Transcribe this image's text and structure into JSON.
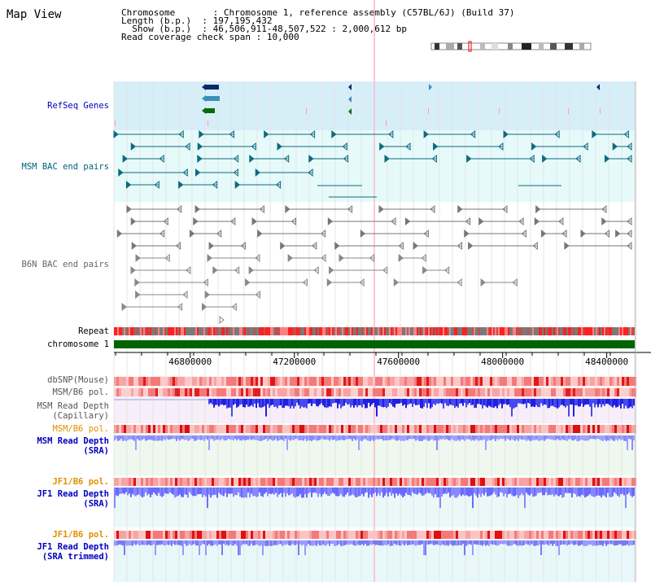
{
  "title": "Map View",
  "header": {
    "chromosome_label": "Chromosome",
    "chromosome_value": "Chromosome 1, reference assembly (C57BL/6J) (Build 37)",
    "length_label": "Length (b.p.)",
    "length_value": "197,195,432",
    "show_label": "Show (b.p.)",
    "show_value": "46,506,911-48,507,522 : 2,000,612 bp",
    "coverage_label": "Read coverage check span",
    "coverage_value": "10,000"
  },
  "tracks": {
    "refseq": "RefSeq Genes",
    "msm_bac": "MSM BAC end pairs",
    "b6n_bac": "B6N BAC end pairs",
    "repeat": "Repeat",
    "chromosome": "chromosome 1",
    "dbsnp": "dbSNP(Mouse)",
    "msm_b6_pol_1": "MSM/B6 pol.",
    "msm_read_depth_cap_1": "MSM Read Depth",
    "msm_read_depth_cap_2": "(Capillary)",
    "msm_b6_pol_2": "MSM/B6 pol.",
    "msm_read_depth_sra_1": "MSM Read Depth",
    "msm_read_depth_sra_2": "(SRA)",
    "jf1_b6_pol_1": "JF1/B6 pol.",
    "jf1_read_depth_sra_1": "JF1 Read Depth",
    "jf1_read_depth_sra_2": "(SRA)",
    "jf1_b6_pol_2": "JF1/B6 pol.",
    "jf1_read_depth_trim_1": "JF1 Read Depth",
    "jf1_read_depth_trim_2": "(SRA trimmed)"
  },
  "axis": {
    "ticks": [
      "46800000",
      "47200000",
      "47600000",
      "48000000",
      "48400000"
    ],
    "range": [
      46506911,
      48507522
    ]
  },
  "colors": {
    "refseq_bg": "#d6eef8",
    "msm_bg": "#e6fafa",
    "b6n_bg": "#ffffff",
    "gene_dark": "#0a2a6a",
    "gene_mid": "#3a90b8",
    "gene_green": "#0a6a0a",
    "msm_feature": "#0e6a80",
    "b6n_feature": "#777777",
    "repeat": "#e83030",
    "chromosome_bar": "#006400",
    "depth_blue": "#2e2ee6",
    "depth_light": "#7a7aff",
    "pol_red": "#f03a3a",
    "label_blue": "#0000c0",
    "label_teal": "#006080",
    "label_orange": "#e09000"
  }
}
